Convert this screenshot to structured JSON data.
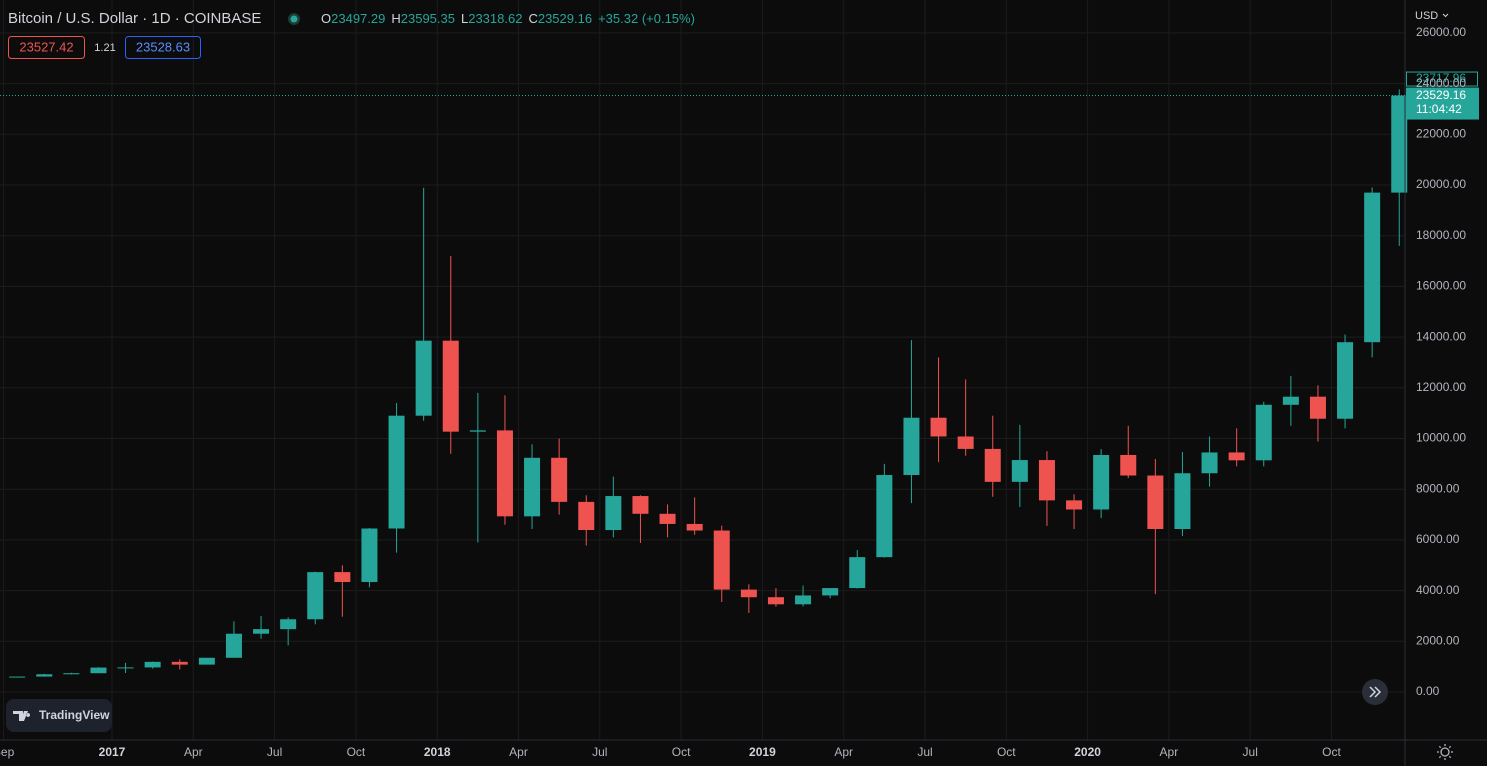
{
  "header": {
    "title": "Bitcoin / U.S. Dollar · 1D · COINBASE",
    "legend": [
      {
        "label": "O",
        "value": 23497.29
      },
      {
        "label": "H",
        "value": 23595.35
      },
      {
        "label": "L",
        "value": 23318.62
      },
      {
        "label": "C",
        "value": 23529.16
      }
    ],
    "change": "+35.32 (+0.15%)",
    "sell": 23527.42,
    "spread": 1.21,
    "buy": 23528.63
  },
  "currency": "USD",
  "branding": "TradingView",
  "chart_data": {
    "type": "candlestick",
    "categories": [
      "Sep",
      null,
      null,
      null,
      "2017",
      null,
      null,
      "Apr",
      null,
      null,
      "Jul",
      null,
      null,
      "Oct",
      null,
      null,
      "2018",
      null,
      null,
      "Apr",
      null,
      null,
      "Jul",
      null,
      null,
      "Oct",
      null,
      null,
      "2019",
      null,
      null,
      "Apr",
      null,
      null,
      "Jul",
      null,
      null,
      "Oct",
      null,
      null,
      "2020",
      null,
      null,
      "Apr",
      null,
      null,
      "Jul",
      null,
      null,
      "Oct",
      null,
      null
    ],
    "open": [
      573,
      609,
      700,
      742,
      963,
      970,
      1190,
      1080,
      1350,
      2300,
      2480,
      2870,
      4730,
      4340,
      6450,
      10900,
      13860,
      10270,
      10320,
      6930,
      9240,
      7500,
      6390,
      7730,
      7030,
      6630,
      6370,
      4040,
      3740,
      3460,
      3810,
      4100,
      5320,
      8560,
      10820,
      10080,
      9590,
      8290,
      9150,
      7560,
      7200,
      9350,
      8540,
      6430,
      8630,
      9450,
      9140,
      11330,
      11650,
      10780,
      13800,
      19700
    ],
    "high": [
      610,
      720,
      760,
      980,
      1150,
      1200,
      1290,
      1350,
      2790,
      3000,
      2950,
      4750,
      5000,
      6470,
      11400,
      19890,
      17200,
      11800,
      11700,
      9770,
      10000,
      7760,
      8500,
      7760,
      7400,
      7680,
      6560,
      4250,
      4100,
      4200,
      4100,
      5600,
      9000,
      13880,
      13200,
      12330,
      10900,
      10540,
      9500,
      7800,
      9580,
      10500,
      9190,
      9470,
      10080,
      10400,
      11450,
      12470,
      12100,
      14100,
      19900,
      23770
    ],
    "low": [
      570,
      605,
      690,
      740,
      750,
      920,
      890,
      1080,
      1350,
      2100,
      1840,
      2670,
      2970,
      4130,
      5500,
      10700,
      9400,
      5900,
      6600,
      6430,
      7000,
      5780,
      6100,
      5880,
      6100,
      6200,
      3550,
      3120,
      3360,
      3380,
      3700,
      4080,
      5300,
      7450,
      9070,
      9320,
      7700,
      7300,
      6550,
      6430,
      6860,
      8440,
      3860,
      6150,
      8100,
      8900,
      8900,
      10500,
      9880,
      10400,
      13200,
      17600
    ],
    "close": [
      609,
      700,
      742,
      963,
      970,
      1190,
      1080,
      1350,
      2300,
      2480,
      2870,
      4730,
      4340,
      6450,
      10900,
      13860,
      10270,
      10320,
      6930,
      9240,
      7500,
      6390,
      7730,
      7030,
      6630,
      6370,
      4040,
      3740,
      3460,
      3810,
      4100,
      5320,
      8560,
      10820,
      10080,
      9590,
      8290,
      9150,
      7560,
      7200,
      9350,
      8540,
      6430,
      8630,
      9450,
      9140,
      11330,
      11650,
      10780,
      13800,
      19700,
      23529
    ],
    "up_color": "#26a69a",
    "down_color": "#ef5350",
    "ylim": [
      -1893,
      27298
    ],
    "yticks": [
      {
        "value": 0,
        "label": "0.00"
      },
      {
        "value": 2000,
        "label": "2000.00"
      },
      {
        "value": 4000,
        "label": "4000.00"
      },
      {
        "value": 6000,
        "label": "6000.00"
      },
      {
        "value": 8000,
        "label": "8000.00"
      },
      {
        "value": 10000,
        "label": "10000.00"
      },
      {
        "value": 12000,
        "label": "12000.00"
      },
      {
        "value": 14000,
        "label": "14000.00"
      },
      {
        "value": 16000,
        "label": "16000.00"
      },
      {
        "value": 18000,
        "label": "18000.00"
      },
      {
        "value": 20000,
        "label": "20000.00"
      },
      {
        "value": 22000,
        "label": "22000.00"
      },
      {
        "value": 24000,
        "label": "24000.00"
      },
      {
        "value": 26000,
        "label": "26000.00"
      }
    ],
    "grid": true,
    "last_price": 23529.16,
    "high_marker": 23717.96,
    "countdown": "11:04:42"
  }
}
